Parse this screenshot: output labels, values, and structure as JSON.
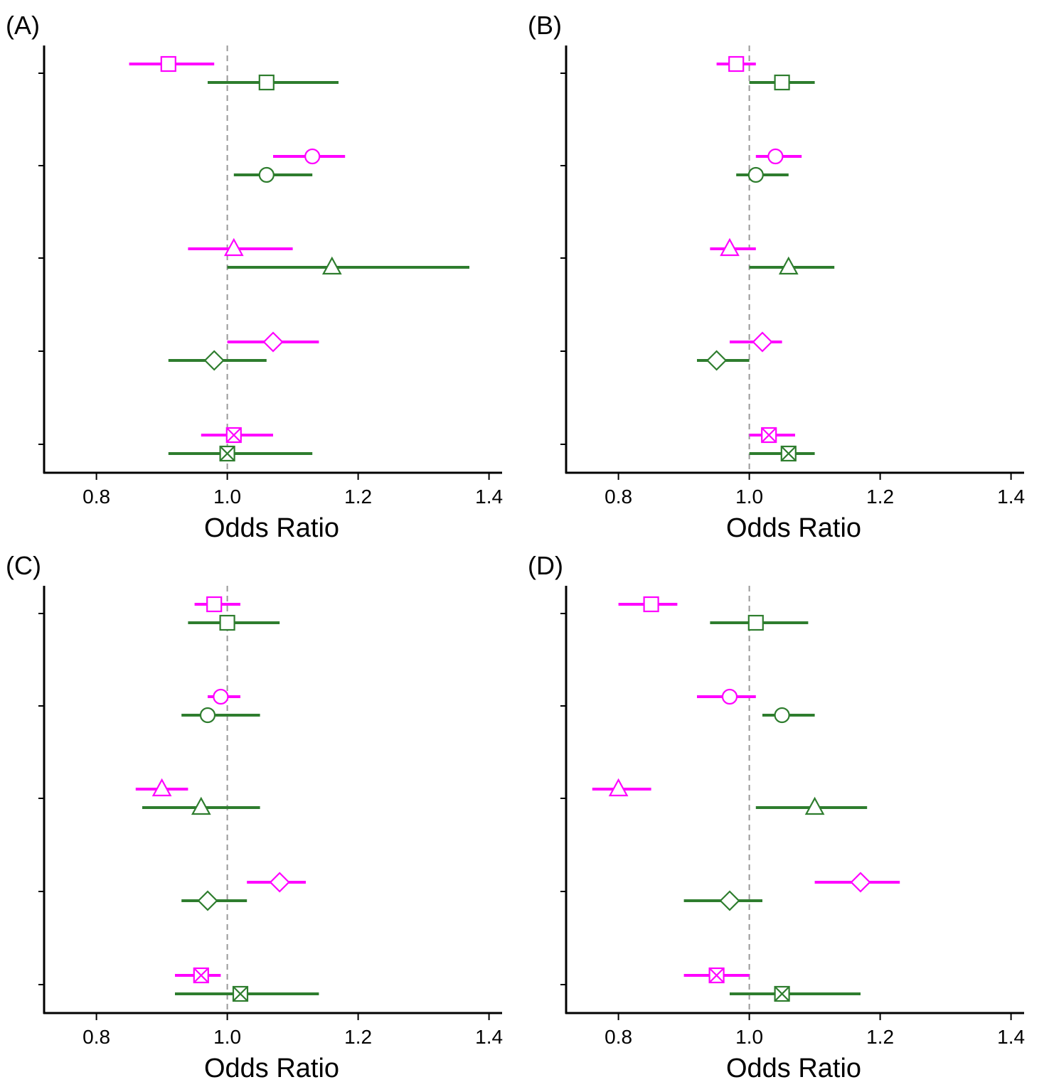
{
  "colors": {
    "series_a": "#ff00ff",
    "series_b": "#2e7d2e",
    "reference_line": "#999999",
    "axis": "#000000"
  },
  "chart_data": [
    {
      "type": "forest",
      "panel_label": "(A)",
      "xlabel": "Odds Ratio",
      "xlim": [
        0.72,
        1.42
      ],
      "xticks": [
        "0.8",
        "1.0",
        "1.2",
        "1.4"
      ],
      "reference_value": 1.0,
      "rows": 5,
      "series": [
        {
          "color": "magenta",
          "points": [
            {
              "row": 1,
              "marker": "square",
              "or": 0.91,
              "lower": 0.85,
              "upper": 0.98
            },
            {
              "row": 2,
              "marker": "circle",
              "or": 1.13,
              "lower": 1.07,
              "upper": 1.18
            },
            {
              "row": 3,
              "marker": "triangle",
              "or": 1.01,
              "lower": 0.94,
              "upper": 1.1
            },
            {
              "row": 4,
              "marker": "diamond",
              "or": 1.07,
              "lower": 1.0,
              "upper": 1.14
            },
            {
              "row": 5,
              "marker": "boxed-x",
              "or": 1.01,
              "lower": 0.96,
              "upper": 1.07
            }
          ]
        },
        {
          "color": "green",
          "points": [
            {
              "row": 1,
              "marker": "square",
              "or": 1.06,
              "lower": 0.97,
              "upper": 1.17
            },
            {
              "row": 2,
              "marker": "circle",
              "or": 1.06,
              "lower": 1.01,
              "upper": 1.13
            },
            {
              "row": 3,
              "marker": "triangle",
              "or": 1.16,
              "lower": 1.0,
              "upper": 1.37
            },
            {
              "row": 4,
              "marker": "diamond",
              "or": 0.98,
              "lower": 0.91,
              "upper": 1.06
            },
            {
              "row": 5,
              "marker": "boxed-x",
              "or": 1.0,
              "lower": 0.91,
              "upper": 1.13
            }
          ]
        }
      ]
    },
    {
      "type": "forest",
      "panel_label": "(B)",
      "xlabel": "Odds Ratio",
      "xlim": [
        0.72,
        1.42
      ],
      "xticks": [
        "0.8",
        "1.0",
        "1.2",
        "1.4"
      ],
      "reference_value": 1.0,
      "rows": 5,
      "series": [
        {
          "color": "magenta",
          "points": [
            {
              "row": 1,
              "marker": "square",
              "or": 0.98,
              "lower": 0.95,
              "upper": 1.01
            },
            {
              "row": 2,
              "marker": "circle",
              "or": 1.04,
              "lower": 1.01,
              "upper": 1.08
            },
            {
              "row": 3,
              "marker": "triangle",
              "or": 0.97,
              "lower": 0.94,
              "upper": 1.01
            },
            {
              "row": 4,
              "marker": "diamond",
              "or": 1.02,
              "lower": 0.97,
              "upper": 1.05
            },
            {
              "row": 5,
              "marker": "boxed-x",
              "or": 1.03,
              "lower": 1.0,
              "upper": 1.07
            }
          ]
        },
        {
          "color": "green",
          "points": [
            {
              "row": 1,
              "marker": "square",
              "or": 1.05,
              "lower": 1.0,
              "upper": 1.1
            },
            {
              "row": 2,
              "marker": "circle",
              "or": 1.01,
              "lower": 0.98,
              "upper": 1.06
            },
            {
              "row": 3,
              "marker": "triangle",
              "or": 1.06,
              "lower": 1.0,
              "upper": 1.13
            },
            {
              "row": 4,
              "marker": "diamond",
              "or": 0.95,
              "lower": 0.92,
              "upper": 1.0
            },
            {
              "row": 5,
              "marker": "boxed-x",
              "or": 1.06,
              "lower": 1.0,
              "upper": 1.1
            }
          ]
        }
      ]
    },
    {
      "type": "forest",
      "panel_label": "(C)",
      "xlabel": "Odds Ratio",
      "xlim": [
        0.72,
        1.42
      ],
      "xticks": [
        "0.8",
        "1.0",
        "1.2",
        "1.4"
      ],
      "reference_value": 1.0,
      "rows": 5,
      "series": [
        {
          "color": "magenta",
          "points": [
            {
              "row": 1,
              "marker": "square",
              "or": 0.98,
              "lower": 0.95,
              "upper": 1.02
            },
            {
              "row": 2,
              "marker": "circle",
              "or": 0.99,
              "lower": 0.97,
              "upper": 1.02
            },
            {
              "row": 3,
              "marker": "triangle",
              "or": 0.9,
              "lower": 0.86,
              "upper": 0.94
            },
            {
              "row": 4,
              "marker": "diamond",
              "or": 1.08,
              "lower": 1.03,
              "upper": 1.12
            },
            {
              "row": 5,
              "marker": "boxed-x",
              "or": 0.96,
              "lower": 0.92,
              "upper": 0.99
            }
          ]
        },
        {
          "color": "green",
          "points": [
            {
              "row": 1,
              "marker": "square",
              "or": 1.0,
              "lower": 0.94,
              "upper": 1.08
            },
            {
              "row": 2,
              "marker": "circle",
              "or": 0.97,
              "lower": 0.93,
              "upper": 1.05
            },
            {
              "row": 3,
              "marker": "triangle",
              "or": 0.96,
              "lower": 0.87,
              "upper": 1.05
            },
            {
              "row": 4,
              "marker": "diamond",
              "or": 0.97,
              "lower": 0.93,
              "upper": 1.03
            },
            {
              "row": 5,
              "marker": "boxed-x",
              "or": 1.02,
              "lower": 0.92,
              "upper": 1.14
            }
          ]
        }
      ]
    },
    {
      "type": "forest",
      "panel_label": "(D)",
      "xlabel": "Odds Ratio",
      "xlim": [
        0.72,
        1.42
      ],
      "xticks": [
        "0.8",
        "1.0",
        "1.2",
        "1.4"
      ],
      "reference_value": 1.0,
      "rows": 5,
      "series": [
        {
          "color": "magenta",
          "points": [
            {
              "row": 1,
              "marker": "square",
              "or": 0.85,
              "lower": 0.8,
              "upper": 0.89
            },
            {
              "row": 2,
              "marker": "circle",
              "or": 0.97,
              "lower": 0.92,
              "upper": 1.01
            },
            {
              "row": 3,
              "marker": "triangle",
              "or": 0.8,
              "lower": 0.76,
              "upper": 0.85
            },
            {
              "row": 4,
              "marker": "diamond",
              "or": 1.17,
              "lower": 1.1,
              "upper": 1.23
            },
            {
              "row": 5,
              "marker": "boxed-x",
              "or": 0.95,
              "lower": 0.9,
              "upper": 1.0
            }
          ]
        },
        {
          "color": "green",
          "points": [
            {
              "row": 1,
              "marker": "square",
              "or": 1.01,
              "lower": 0.94,
              "upper": 1.09
            },
            {
              "row": 2,
              "marker": "circle",
              "or": 1.05,
              "lower": 1.02,
              "upper": 1.1
            },
            {
              "row": 3,
              "marker": "triangle",
              "or": 1.1,
              "lower": 1.01,
              "upper": 1.18
            },
            {
              "row": 4,
              "marker": "diamond",
              "or": 0.97,
              "lower": 0.9,
              "upper": 1.02
            },
            {
              "row": 5,
              "marker": "boxed-x",
              "or": 1.05,
              "lower": 0.97,
              "upper": 1.17
            }
          ]
        }
      ]
    }
  ]
}
